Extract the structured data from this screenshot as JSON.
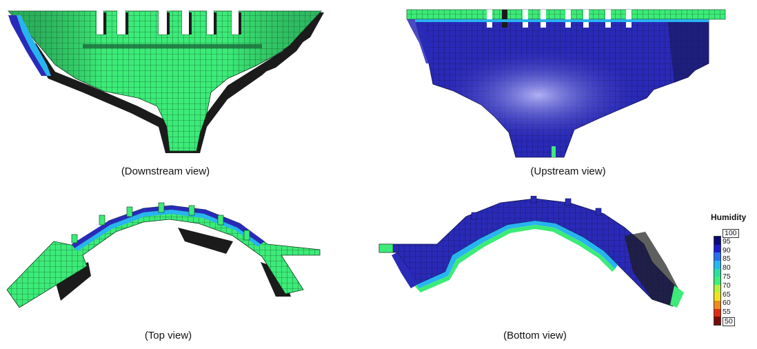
{
  "views": {
    "downstream": {
      "caption": "(Downstream view)"
    },
    "upstream": {
      "caption": "(Upstream view)"
    },
    "top": {
      "caption": "(Top view)"
    },
    "bottom": {
      "caption": "(Bottom view)"
    }
  },
  "legend": {
    "title": "Humidity",
    "ticks": [
      "100",
      "95",
      "90",
      "85",
      "80",
      "75",
      "70",
      "65",
      "60",
      "55",
      "50"
    ],
    "colors": [
      "#0a0a7a",
      "#1a1ad0",
      "#2a6ef0",
      "#25b7f0",
      "#2ae0a0",
      "#3cf07a",
      "#b4f03c",
      "#f0e01e",
      "#f08a1e",
      "#e02a14",
      "#7a0a0a"
    ]
  },
  "palette": {
    "green": "#3ceb78",
    "dark": "#1b1b1b",
    "blue": "#2a2ab8",
    "blue_light": "#9a9af0",
    "cyan": "#28b4f0"
  }
}
